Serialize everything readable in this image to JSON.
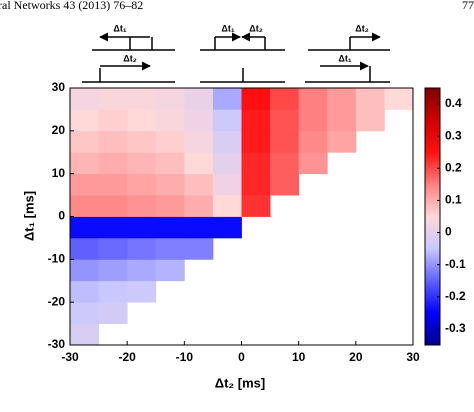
{
  "header": {
    "journal": "ral Networks 43 (2013) 76–82",
    "page": "77"
  },
  "chart_data": {
    "type": "heatmap",
    "xlabel": "Δt₂ [ms]",
    "ylabel": "Δt₁ [ms]",
    "annotations": [
      "Δt₁",
      "Δt₂",
      "Δt₁",
      "Δt₂",
      "Δt₂",
      "Δt₁"
    ],
    "xbins": [
      -30,
      -25,
      -20,
      -15,
      -10,
      -5,
      0,
      5,
      10,
      15,
      20,
      25,
      30
    ],
    "ybins": [
      -30,
      -25,
      -20,
      -15,
      -10,
      -5,
      0,
      5,
      10,
      15,
      20,
      25,
      30
    ],
    "z": [
      [
        -0.02,
        null,
        null,
        null,
        null,
        null,
        null,
        null,
        null,
        null,
        null,
        null
      ],
      [
        -0.04,
        -0.03,
        null,
        null,
        null,
        null,
        null,
        null,
        null,
        null,
        null,
        null
      ],
      [
        -0.06,
        -0.05,
        -0.04,
        null,
        null,
        null,
        null,
        null,
        null,
        null,
        null,
        null
      ],
      [
        -0.1,
        -0.09,
        -0.08,
        -0.07,
        null,
        null,
        null,
        null,
        null,
        null,
        null,
        null
      ],
      [
        -0.15,
        -0.14,
        -0.13,
        -0.12,
        -0.12,
        null,
        null,
        null,
        null,
        null,
        null,
        null
      ],
      [
        -0.24,
        -0.24,
        -0.24,
        -0.24,
        -0.24,
        -0.24,
        null,
        null,
        null,
        null,
        null,
        null
      ],
      [
        0.14,
        0.14,
        0.13,
        0.12,
        0.1,
        0.05,
        0.22,
        null,
        null,
        null,
        null,
        null
      ],
      [
        0.12,
        0.12,
        0.11,
        0.1,
        0.08,
        0.02,
        0.23,
        0.18,
        null,
        null,
        null,
        null
      ],
      [
        0.09,
        0.1,
        0.09,
        0.08,
        0.05,
        0.0,
        0.23,
        0.18,
        0.13,
        null,
        null,
        null
      ],
      [
        0.07,
        0.08,
        0.07,
        0.06,
        0.03,
        -0.02,
        0.24,
        0.19,
        0.14,
        0.11,
        null,
        null
      ],
      [
        0.05,
        0.06,
        0.05,
        0.04,
        0.02,
        -0.04,
        0.24,
        0.19,
        0.15,
        0.12,
        0.08,
        null
      ],
      [
        0.03,
        0.04,
        0.04,
        0.03,
        0.01,
        -0.08,
        0.25,
        0.2,
        0.15,
        0.12,
        0.08,
        0.05
      ]
    ],
    "xlim": [
      -30,
      30
    ],
    "ylim": [
      -30,
      30
    ],
    "xticks": [
      -30,
      -20,
      -10,
      0,
      10,
      20,
      30
    ],
    "yticks": [
      -30,
      -20,
      -10,
      0,
      10,
      20,
      30
    ],
    "clim": [
      -0.35,
      0.45
    ],
    "cticks": [
      -0.3,
      -0.2,
      -0.1,
      0,
      0.1,
      0.2,
      0.3,
      0.4
    ],
    "colormap": [
      "#00008c",
      "#0000ff",
      "#6060ff",
      "#c8c8ff",
      "#ffd8d8",
      "#ff8080",
      "#ff1010",
      "#d00000",
      "#800000"
    ]
  }
}
